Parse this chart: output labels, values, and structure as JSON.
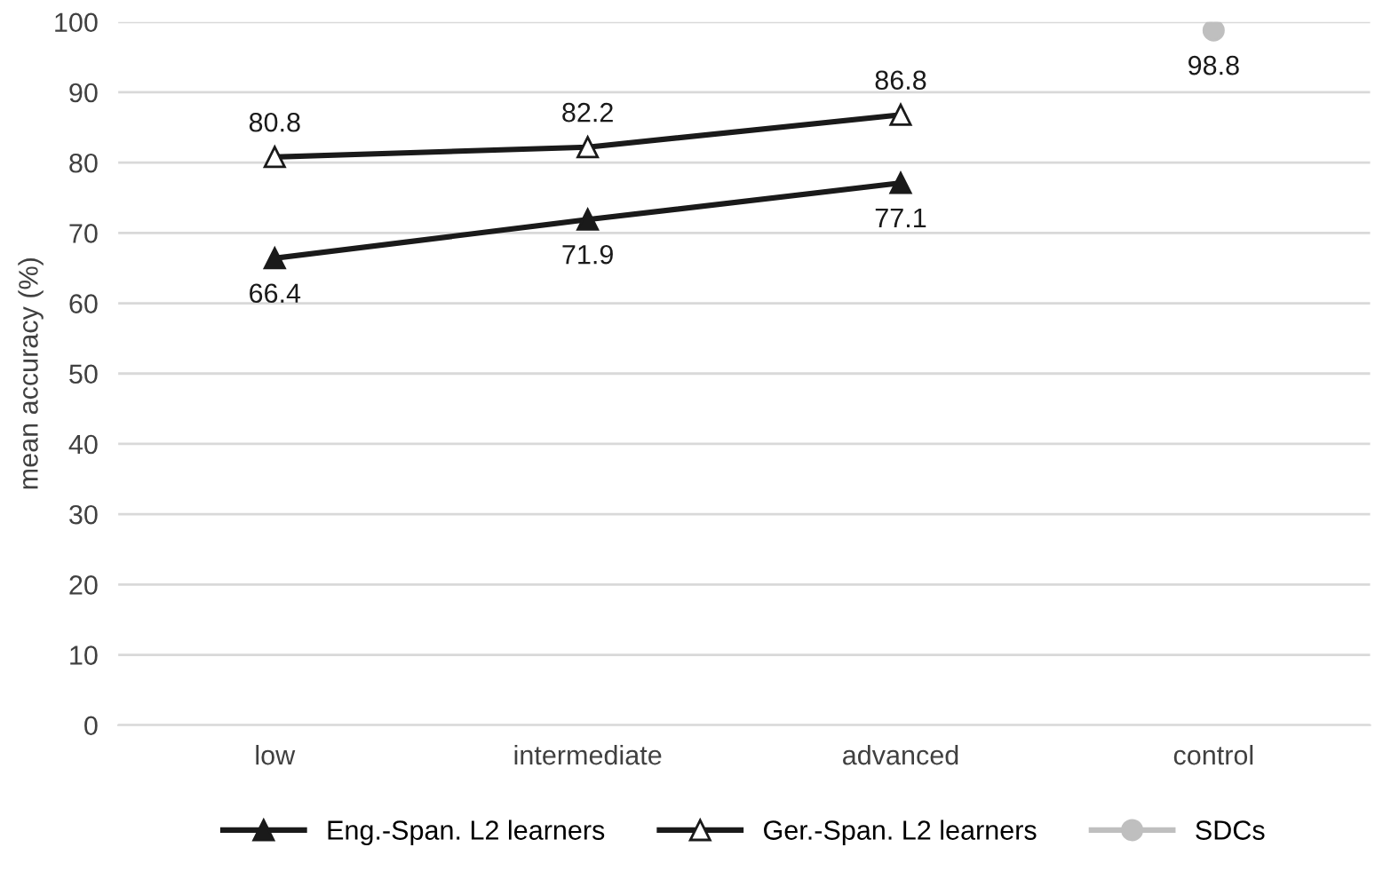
{
  "chart_data": {
    "type": "line",
    "ylabel": "mean accuracy (%)",
    "categories": [
      "low",
      "intermediate",
      "advanced",
      "control"
    ],
    "series": [
      {
        "name": "Eng.-Span. L2 learners",
        "color": "#1a1a1a",
        "values": [
          66.4,
          71.9,
          77.1,
          null
        ],
        "marker": "triangle"
      },
      {
        "name": "Ger.-Span. L2 learners",
        "color": "#1a1a1a",
        "values": [
          80.8,
          82.2,
          86.8,
          null
        ],
        "marker": "triangle"
      },
      {
        "name": "SDCs",
        "color": "#bfbfbf",
        "values": [
          null,
          null,
          null,
          98.8
        ],
        "marker": "circle"
      }
    ],
    "ylim": [
      0,
      100
    ],
    "yticks": [
      0,
      10,
      20,
      30,
      40,
      50,
      60,
      70,
      80,
      90,
      100
    ],
    "grid": "y",
    "legend": "bottom",
    "data_labels": true,
    "line_style": "solid"
  }
}
